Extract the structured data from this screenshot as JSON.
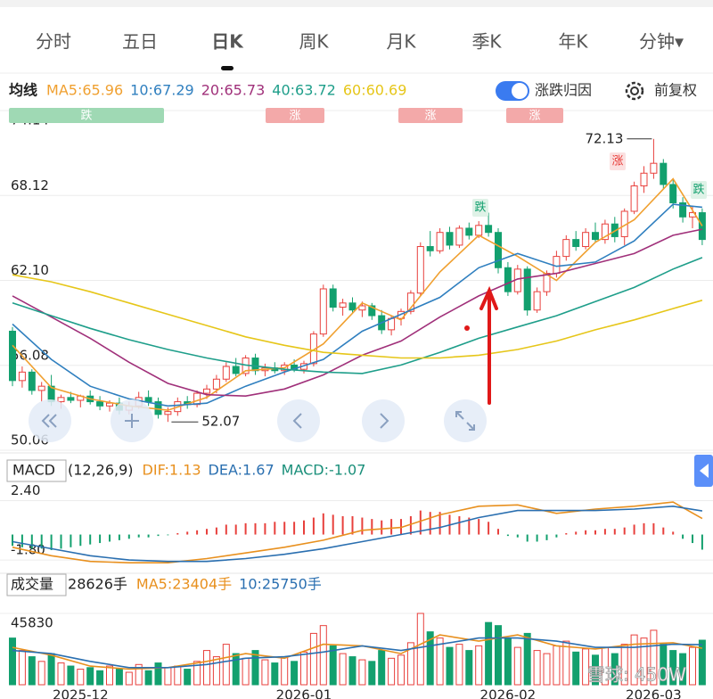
{
  "tabs": [
    "分时",
    "五日",
    "日K",
    "周K",
    "月K",
    "季K",
    "年K",
    "分钟▾"
  ],
  "active_tab": 2,
  "toolbar": {
    "toggle_label": "涨跌归因",
    "adjust_label": "前复权"
  },
  "watermark": "雪球: 450W",
  "chart_data": [
    {
      "type": "candlestick",
      "legend_title": "均线",
      "ylim": [
        50.06,
        74.14
      ],
      "yticks": [
        74.14,
        68.12,
        {
          "value": 62.1,
          "label": "62.10"
        },
        56.08,
        50.06
      ],
      "up_color": "#e8403c",
      "down_color": "#12a06e",
      "open": [
        58.5,
        55.0,
        55.6,
        54.3,
        54.6,
        53.5,
        53.8,
        53.6,
        53.9,
        53.5,
        53.2,
        53.4,
        52.9,
        53.2,
        53.8,
        53.5,
        52.6,
        52.8,
        53.5,
        53.3,
        54.1,
        54.4,
        55.1,
        56.0,
        55.5,
        56.6,
        55.7,
        55.9,
        55.7,
        56.1,
        55.8,
        56.2,
        58.3,
        61.5,
        60.2,
        60.5,
        60.0,
        60.3,
        59.6,
        58.6,
        59.4,
        59.9,
        61.2,
        64.5,
        64.2,
        65.5,
        64.6,
        65.8,
        65.3,
        66.0,
        65.5,
        63.0,
        61.3,
        62.9,
        60.0,
        61.3,
        62.6,
        63.8,
        65.0,
        64.5,
        65.5,
        65.0,
        66.1,
        65.2,
        67.0,
        68.8,
        69.7,
        70.4,
        68.9,
        67.6,
        66.6,
        66.9
      ],
      "high": [
        58.8,
        56.0,
        55.8,
        54.9,
        55.4,
        54.0,
        54.2,
        54.0,
        54.3,
        53.9,
        53.6,
        53.8,
        53.5,
        54.2,
        54.3,
        53.8,
        53.1,
        53.8,
        53.9,
        54.3,
        54.7,
        55.4,
        56.3,
        56.6,
        56.8,
        56.9,
        56.2,
        56.3,
        56.3,
        56.5,
        56.4,
        58.5,
        61.8,
        61.8,
        60.8,
        60.9,
        60.6,
        60.5,
        60.0,
        59.6,
        60.1,
        61.4,
        64.8,
        65.6,
        65.8,
        65.9,
        66.0,
        66.2,
        66.3,
        66.9,
        65.8,
        63.4,
        63.2,
        63.1,
        61.6,
        62.8,
        64.2,
        65.3,
        65.6,
        65.8,
        66.2,
        66.4,
        66.6,
        67.2,
        69.1,
        70.2,
        72.13,
        70.7,
        69.3,
        68.0,
        67.4,
        67.2
      ],
      "low": [
        54.6,
        54.5,
        54.0,
        53.5,
        53.2,
        53.0,
        53.4,
        53.1,
        53.3,
        52.9,
        52.8,
        52.6,
        52.6,
        53.0,
        53.2,
        52.3,
        52.07,
        52.5,
        53.0,
        53.1,
        53.7,
        54.1,
        54.9,
        55.3,
        55.3,
        55.4,
        55.3,
        55.5,
        55.4,
        55.6,
        55.5,
        56.0,
        58.1,
        59.9,
        59.6,
        59.8,
        59.5,
        59.3,
        58.3,
        58.2,
        58.9,
        59.7,
        61.0,
        63.8,
        64.0,
        64.3,
        64.4,
        65.0,
        65.1,
        65.2,
        62.6,
        61.0,
        61.1,
        59.6,
        59.8,
        61.0,
        62.3,
        63.5,
        64.2,
        64.3,
        64.8,
        64.7,
        64.8,
        64.6,
        66.8,
        68.3,
        69.3,
        68.6,
        67.2,
        66.2,
        65.8,
        64.6
      ],
      "close": [
        55.0,
        55.6,
        54.3,
        54.6,
        53.5,
        53.8,
        53.6,
        53.9,
        53.5,
        53.2,
        53.4,
        52.9,
        53.2,
        53.8,
        53.5,
        52.6,
        52.8,
        53.5,
        53.3,
        54.1,
        54.4,
        55.1,
        56.0,
        55.5,
        56.6,
        55.7,
        55.9,
        55.7,
        56.1,
        55.8,
        56.2,
        58.3,
        61.5,
        60.2,
        60.5,
        60.0,
        60.3,
        59.6,
        58.6,
        59.4,
        59.9,
        61.2,
        64.5,
        64.2,
        65.5,
        64.6,
        65.8,
        65.3,
        66.0,
        65.5,
        63.0,
        61.3,
        62.9,
        60.0,
        61.3,
        62.6,
        63.8,
        65.0,
        64.5,
        65.5,
        65.0,
        66.1,
        65.2,
        67.0,
        68.8,
        69.7,
        70.4,
        68.9,
        67.6,
        66.6,
        66.9,
        65.0
      ],
      "series": [
        {
          "name": "MA5:65.96",
          "color": "#f0a030",
          "x": [
            0,
            4,
            8,
            12,
            16,
            20,
            24,
            28,
            32,
            36,
            40,
            44,
            48,
            52,
            56,
            60,
            64,
            68,
            71
          ],
          "values": [
            57.5,
            54.5,
            53.7,
            53.2,
            52.9,
            53.8,
            55.7,
            55.9,
            57.6,
            60.5,
            59.3,
            62.7,
            65.3,
            63.8,
            62.1,
            64.8,
            66.4,
            69.3,
            65.96
          ]
        },
        {
          "name": "10:67.29",
          "color": "#2f7fbf",
          "x": [
            0,
            4,
            8,
            12,
            16,
            20,
            24,
            28,
            32,
            36,
            40,
            44,
            48,
            52,
            56,
            60,
            64,
            68,
            71
          ],
          "values": [
            59.0,
            56.5,
            54.6,
            53.7,
            53.2,
            53.4,
            54.6,
            55.6,
            56.5,
            58.5,
            59.7,
            60.9,
            63.0,
            64.0,
            63.1,
            63.4,
            64.9,
            67.5,
            67.29
          ]
        },
        {
          "name": "20:65.73",
          "color": "#a0307a",
          "x": [
            0,
            4,
            8,
            12,
            16,
            20,
            24,
            28,
            32,
            36,
            40,
            44,
            48,
            52,
            56,
            60,
            64,
            68,
            71
          ],
          "values": [
            61.0,
            59.5,
            58.0,
            56.3,
            54.8,
            54.0,
            53.9,
            54.4,
            55.4,
            56.8,
            57.8,
            59.5,
            61.0,
            62.2,
            62.6,
            63.3,
            64.0,
            65.3,
            65.73
          ]
        },
        {
          "name": "40:63.72",
          "color": "#1e9e8a",
          "x": [
            0,
            4,
            8,
            12,
            16,
            20,
            24,
            28,
            32,
            36,
            40,
            44,
            48,
            52,
            56,
            60,
            64,
            68,
            71
          ],
          "values": [
            60.5,
            59.6,
            58.7,
            57.9,
            57.2,
            56.6,
            56.1,
            55.8,
            55.6,
            55.5,
            56.1,
            57.0,
            58.0,
            58.8,
            59.6,
            60.6,
            61.6,
            62.9,
            63.72
          ]
        },
        {
          "name": "60:60.69",
          "color": "#e6c619",
          "x": [
            0,
            4,
            8,
            12,
            16,
            20,
            24,
            28,
            32,
            36,
            40,
            44,
            48,
            52,
            56,
            60,
            64,
            68,
            71
          ],
          "values": [
            62.5,
            62.0,
            61.3,
            60.5,
            59.7,
            58.9,
            58.1,
            57.5,
            57.0,
            56.8,
            56.6,
            56.6,
            56.8,
            57.2,
            57.8,
            58.6,
            59.3,
            60.1,
            60.69
          ]
        }
      ],
      "annotations": {
        "high": 72.13,
        "low": 52.07
      },
      "signals": [
        "跌",
        "涨",
        "涨",
        "涨"
      ],
      "tags": [
        "跌",
        "涨",
        "跌"
      ]
    },
    {
      "type": "macd",
      "title": "MACD",
      "params": "(12,26,9)",
      "ylim": [
        -2.3,
        3.0
      ],
      "yticks": [
        {
          "value": 2.4,
          "label": "2.40"
        },
        {
          "value": -1.8,
          "label": "-1.80"
        }
      ],
      "series": [
        {
          "name": "DIF:1.13",
          "color": "#e8901e",
          "x": [
            0,
            4,
            8,
            12,
            16,
            20,
            24,
            28,
            32,
            36,
            40,
            44,
            48,
            52,
            56,
            60,
            64,
            68,
            71
          ],
          "values": [
            -0.9,
            -1.5,
            -1.9,
            -2.0,
            -2.0,
            -1.7,
            -1.3,
            -0.9,
            -0.4,
            0.3,
            0.5,
            1.4,
            2.0,
            2.1,
            1.5,
            1.8,
            2.0,
            2.3,
            1.13
          ]
        },
        {
          "name": "DEA:1.67",
          "color": "#2a6fb0",
          "x": [
            0,
            4,
            8,
            12,
            16,
            20,
            24,
            28,
            32,
            36,
            40,
            44,
            48,
            52,
            56,
            60,
            64,
            68,
            71
          ],
          "values": [
            -0.5,
            -1.0,
            -1.5,
            -1.8,
            -1.9,
            -1.9,
            -1.7,
            -1.4,
            -1.0,
            -0.5,
            0.0,
            0.5,
            1.2,
            1.7,
            1.7,
            1.7,
            1.8,
            2.0,
            1.67
          ]
        }
      ],
      "histogram": {
        "name": "MACD:-1.07",
        "color": "#1a8f7a",
        "up_color": "#e8403c",
        "down_color": "#12a06e",
        "values": [
          -0.8,
          -0.9,
          -1.0,
          -1.0,
          -1.1,
          -1.0,
          -0.9,
          -0.8,
          -0.7,
          -0.6,
          -0.5,
          -0.4,
          -0.3,
          -0.2,
          -0.2,
          -0.1,
          -0.05,
          0.1,
          0.2,
          0.3,
          0.4,
          0.5,
          0.7,
          0.7,
          0.8,
          0.8,
          0.8,
          0.9,
          0.9,
          0.9,
          1.0,
          1.2,
          1.5,
          1.4,
          1.3,
          1.3,
          1.2,
          1.1,
          1.0,
          1.1,
          1.1,
          1.3,
          1.7,
          1.6,
          1.6,
          1.4,
          1.3,
          1.2,
          1.1,
          0.9,
          0.4,
          -0.1,
          -0.2,
          -0.5,
          -0.5,
          -0.4,
          -0.2,
          0.1,
          0.2,
          0.3,
          0.3,
          0.4,
          0.4,
          0.5,
          0.7,
          0.8,
          0.8,
          0.5,
          0.2,
          -0.3,
          -0.6,
          -1.07
        ]
      }
    },
    {
      "type": "volume",
      "title": "成交量",
      "current": "28626手",
      "ylim": [
        0,
        45830
      ],
      "yticks": [
        45830
      ],
      "values": [
        30000,
        22000,
        18000,
        15000,
        20000,
        14000,
        12000,
        10000,
        11000,
        9000,
        12000,
        10000,
        8000,
        13000,
        9000,
        14000,
        11000,
        12000,
        10000,
        15000,
        22000,
        18000,
        26000,
        20000,
        17000,
        22000,
        16000,
        14000,
        18000,
        15000,
        21000,
        33000,
        38000,
        25000,
        20000,
        18000,
        16000,
        15000,
        22000,
        17000,
        19000,
        27000,
        45830,
        34000,
        30000,
        24000,
        26000,
        22000,
        25000,
        40000,
        38000,
        30000,
        24000,
        33000,
        22000,
        20000,
        25000,
        28000,
        21000,
        23000,
        19000,
        24000,
        20000,
        26000,
        32000,
        30000,
        35000,
        26000,
        22000,
        20000,
        24000,
        28626
      ],
      "categories": [
        null,
        null,
        null,
        null,
        null,
        null,
        null,
        "2025-12",
        null,
        null,
        null,
        null,
        null,
        null,
        null,
        null,
        null,
        null,
        null,
        null,
        null,
        null,
        null,
        null,
        null,
        null,
        null,
        null,
        null,
        null,
        "2026-01",
        null,
        null,
        null,
        null,
        null,
        null,
        null,
        null,
        null,
        null,
        null,
        null,
        null,
        null,
        null,
        null,
        null,
        null,
        null,
        null,
        "2026-02",
        null,
        null,
        null,
        null,
        null,
        null,
        null,
        null,
        null,
        null,
        null,
        null,
        null,
        null,
        "2026-03",
        null,
        null,
        null,
        null,
        null
      ],
      "series": [
        {
          "name": "MA5:23404手",
          "color": "#e8901e",
          "x": [
            0,
            4,
            8,
            12,
            16,
            20,
            24,
            28,
            32,
            36,
            40,
            44,
            48,
            52,
            56,
            60,
            64,
            68,
            71
          ],
          "values": [
            24000,
            19000,
            12000,
            10000,
            11000,
            15000,
            20000,
            17000,
            26000,
            25000,
            20000,
            32000,
            28000,
            32000,
            25000,
            23000,
            26000,
            27000,
            23404
          ]
        },
        {
          "name": "10:25750手",
          "color": "#2a6fb0",
          "x": [
            0,
            4,
            8,
            12,
            16,
            20,
            24,
            28,
            32,
            36,
            40,
            44,
            48,
            52,
            56,
            60,
            64,
            68,
            71
          ],
          "values": [
            22000,
            20000,
            15000,
            11000,
            11000,
            13000,
            17000,
            18000,
            21000,
            25000,
            22000,
            26000,
            30000,
            30000,
            28000,
            24000,
            24000,
            26000,
            25750
          ]
        }
      ]
    }
  ]
}
